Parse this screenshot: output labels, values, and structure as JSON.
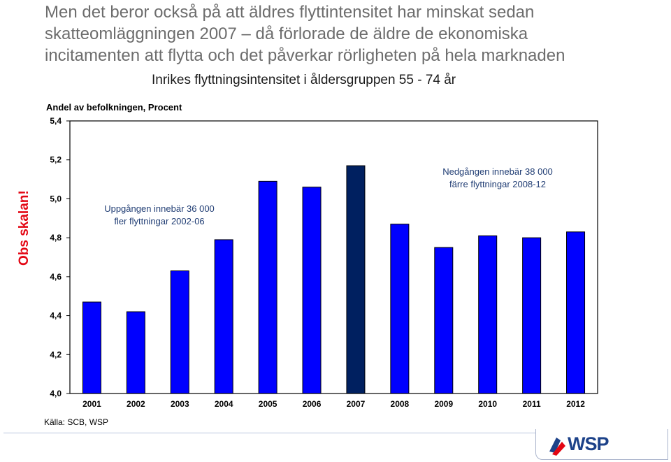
{
  "headline": [
    "Men det beror också på att äldres flyttintensitet har minskat sedan",
    "skatteomläggningen 2007 – då förlorade de äldre de ekonomiska",
    "incitamenten att flytta och det påverkar rörligheten på hela marknaden"
  ],
  "side_note": "Obs skalan!",
  "source": "Källa: SCB, WSP",
  "logo_text": "WSP",
  "colors": {
    "bar": "#0000ff",
    "bar_highlight": "#002060",
    "headline": "#6d6d6d",
    "side_note": "#e30613",
    "logo": "#1d4289",
    "logo_accent": "#e30613"
  },
  "chart_data": {
    "type": "bar",
    "title": "Inrikes flyttningsintensitet i åldersgruppen 55 - 74 år",
    "ylabel": "Andel av befolkningen, Procent",
    "xlabel": "",
    "categories": [
      "2001",
      "2002",
      "2003",
      "2004",
      "2005",
      "2006",
      "2007",
      "2008",
      "2009",
      "2010",
      "2011",
      "2012"
    ],
    "values": [
      4.47,
      4.42,
      4.63,
      4.79,
      5.09,
      5.06,
      5.17,
      4.87,
      4.75,
      4.81,
      4.8,
      4.83
    ],
    "highlight_category": "2007",
    "ylim": [
      4.0,
      5.4
    ],
    "yticks": [
      "4,0",
      "4,2",
      "4,4",
      "4,6",
      "4,8",
      "5,0",
      "5,2",
      "5,4"
    ],
    "grid": false,
    "annotations": [
      {
        "lines": [
          "Uppgången innebär 36 000",
          "fler flyttningar 2002-06"
        ]
      },
      {
        "lines": [
          "Nedgången innebär 38 000",
          "färre flyttningar 2008-12"
        ]
      }
    ]
  }
}
